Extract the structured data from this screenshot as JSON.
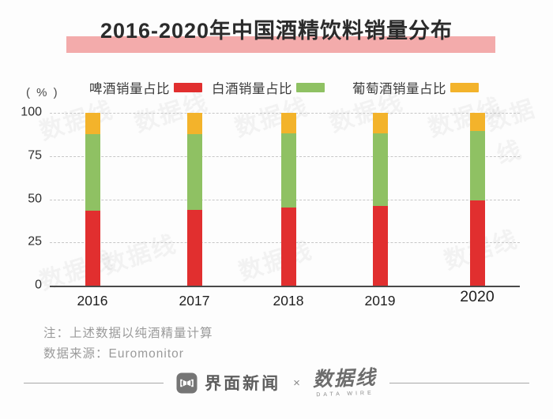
{
  "title": {
    "text": "2016-2020年中国酒精饮料销量分布",
    "band_color": "#F3ABAB"
  },
  "legend": [
    {
      "label": "啤酒销量占比",
      "color": "#E12F2F"
    },
    {
      "label": "白酒销量占比",
      "color": "#8FC163"
    },
    {
      "label": "葡萄酒销量占比",
      "color": "#F3B32B"
    }
  ],
  "chart_data": {
    "type": "bar",
    "stacked": true,
    "title": "2016-2020年中国酒精饮料销量分布",
    "unit_label": "( % )",
    "categories": [
      "2016",
      "2017",
      "2018",
      "2019",
      "2020"
    ],
    "series": [
      {
        "name": "啤酒销量占比",
        "color": "#E12F2F",
        "values": [
          43.5,
          44.0,
          45.0,
          46.0,
          49.5
        ]
      },
      {
        "name": "白酒销量占比",
        "color": "#8FC163",
        "values": [
          44.0,
          43.5,
          43.0,
          42.0,
          40.0
        ]
      },
      {
        "name": "葡萄酒销量占比",
        "color": "#F3B32B",
        "values": [
          12.5,
          12.5,
          12.0,
          12.0,
          10.5
        ]
      }
    ],
    "ylim": [
      0,
      100
    ],
    "yticks": [
      0,
      25,
      50,
      75,
      100
    ],
    "grid": "horizontal-dashed",
    "legend_position": "top"
  },
  "notes": {
    "line1": "注：上述数据以纯酒精量计算",
    "line2": "数据来源：Euromonitor"
  },
  "footer": {
    "brand1": "界面新闻",
    "separator": "×",
    "brand2": "数据线",
    "brand2_sub": "DATA WIRE"
  },
  "watermark": {
    "text": "数据线"
  }
}
